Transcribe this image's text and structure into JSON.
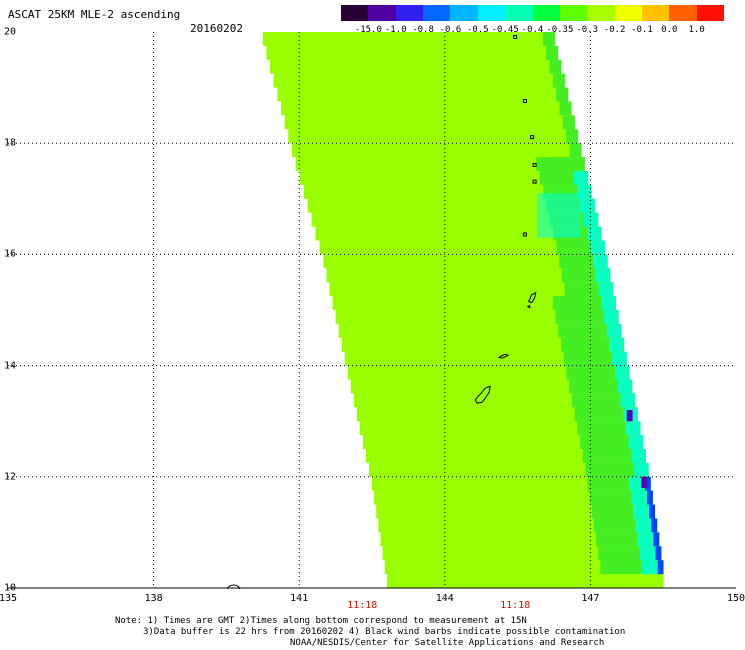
{
  "header": {
    "title": "ASCAT 25KM MLE-2 ascending",
    "date": "20160202"
  },
  "colors": {
    "background": "#ffffff",
    "swath_main": "#99ff00",
    "swath_green": "#44ee22",
    "swath_cyan": "#00ffdd",
    "swath_blue": "#0044ff",
    "swath_violet": "#5500bb",
    "coast": "#000000",
    "time_label": "#cc1100"
  },
  "colorbar": {
    "colors": [
      "#2a0034",
      "#5000a0",
      "#3020f0",
      "#0068ff",
      "#00b4ff",
      "#00f0ff",
      "#00ffb0",
      "#00ff40",
      "#60ff00",
      "#a8ff00",
      "#f0ff00",
      "#ffc000",
      "#ff6000",
      "#ff1000"
    ],
    "ticks": [
      "-15.0",
      "-1.0",
      "-0.8",
      "-0.6",
      "-0.5",
      "-0.45",
      "-0.4",
      "-0.35",
      "-0.3",
      "-0.2",
      "-0.1",
      "0.0",
      "1.0"
    ]
  },
  "map": {
    "lon_range": [
      135,
      150
    ],
    "lat_range": [
      10,
      20
    ],
    "lon_grid": [
      138,
      141,
      144,
      147
    ],
    "lat_grid": [
      12,
      14,
      16,
      18
    ],
    "lon_labels": [
      "135",
      "138",
      "141",
      "144",
      "147",
      "150"
    ],
    "lat_labels": [
      "10",
      "12",
      "14",
      "16",
      "18",
      "20"
    ]
  },
  "swath": {
    "left_edge": [
      {
        "lat": 20.0,
        "lon": 140.25
      },
      {
        "lat": 18.0,
        "lon": 140.85
      },
      {
        "lat": 16.0,
        "lon": 141.5
      },
      {
        "lat": 14.0,
        "lon": 142.0
      },
      {
        "lat": 12.0,
        "lon": 142.5
      },
      {
        "lat": 10.0,
        "lon": 142.85
      }
    ],
    "right_edge": [
      {
        "lat": 20.0,
        "lon": 146.2
      },
      {
        "lat": 18.0,
        "lon": 146.75
      },
      {
        "lat": 16.0,
        "lon": 147.3
      },
      {
        "lat": 14.0,
        "lon": 147.75
      },
      {
        "lat": 12.0,
        "lon": 148.2
      },
      {
        "lat": 10.0,
        "lon": 148.55
      }
    ]
  },
  "pass_times": [
    {
      "label": "11:18",
      "lon": 142.3
    },
    {
      "label": "11:18",
      "lon": 145.45
    }
  ],
  "islands": [
    {
      "name_icon": "guam-icon",
      "lon": 144.75,
      "lat": 13.45
    },
    {
      "name_icon": "rota-icon",
      "lon": 145.2,
      "lat": 14.15
    },
    {
      "name_icon": "saipan-icon",
      "lon": 145.75,
      "lat": 15.15
    },
    {
      "name_icon": "anatahan-icon",
      "lon": 145.65,
      "lat": 16.35
    },
    {
      "name_icon": "pagan-icon",
      "lon": 145.8,
      "lat": 18.1
    },
    {
      "name_icon": "agrihan-icon",
      "lon": 145.65,
      "lat": 18.75
    },
    {
      "name_icon": "uracas-icon",
      "lon": 145.45,
      "lat": 19.9
    },
    {
      "name_icon": "alamagan-icon",
      "lon": 145.85,
      "lat": 17.6
    },
    {
      "name_icon": "guguan-icon",
      "lon": 145.85,
      "lat": 17.3
    },
    {
      "name_icon": "ngulu-icon",
      "lon": 139.65,
      "lat": 10.0
    }
  ],
  "notes": [
    "Note: 1) Times are GMT 2)Times along bottom correspond to measurement at 15N",
    "3)Data buffer is 22 hrs from 20160202 4) Black wind barbs indicate possible contamination",
    "NOAA/NESDIS/Center for Satellite Applications and Research"
  ]
}
